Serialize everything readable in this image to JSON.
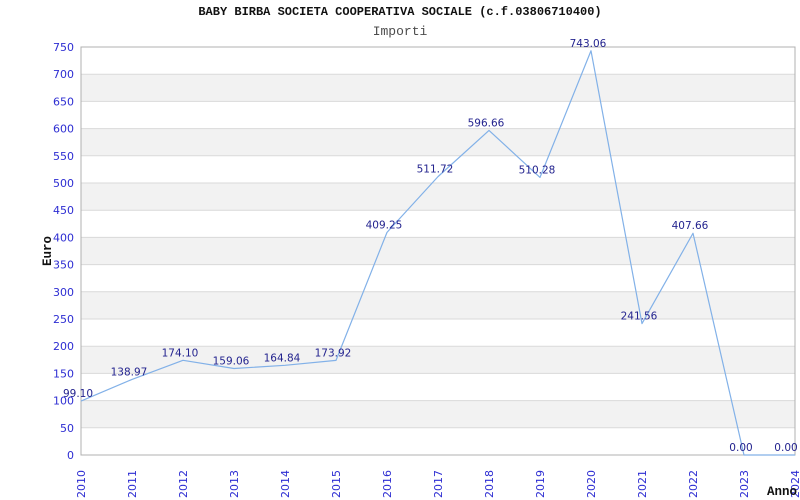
{
  "page": {
    "background": "#ffffff"
  },
  "header": {
    "title": "BABY BIRBA SOCIETA COOPERATIVA SOCIALE (c.f.03806710400)",
    "subtitle": "Importi"
  },
  "chart_data": {
    "type": "line",
    "title": "BABY BIRBA SOCIETA COOPERATIVA SOCIALE (c.f.03806710400)",
    "subtitle": "Importi",
    "xlabel": "Anno",
    "ylabel": "Euro",
    "categories": [
      "2010",
      "2011",
      "2012",
      "2013",
      "2014",
      "2015",
      "2016",
      "2017",
      "2018",
      "2019",
      "2020",
      "2021",
      "2022",
      "2023",
      "2024"
    ],
    "values": [
      99.1,
      138.97,
      174.1,
      159.06,
      164.84,
      173.92,
      409.25,
      511.72,
      596.66,
      510.28,
      743.06,
      241.56,
      407.66,
      0.0,
      0.0
    ],
    "point_labels": [
      "99.10",
      "138.97",
      "174.10",
      "159.06",
      "164.84",
      "173.92",
      "409.25",
      "511.72",
      "596.66",
      "510.28",
      "743.06",
      "241.56",
      "407.66",
      "0.00",
      "0.00"
    ],
    "ylim": [
      0,
      750
    ],
    "ytick_step": 50,
    "ytick_labels": [
      "0",
      "50",
      "100",
      "150",
      "200",
      "250",
      "300",
      "350",
      "400",
      "450",
      "500",
      "550",
      "600",
      "650",
      "700",
      "750"
    ],
    "grid": true,
    "banded_background": true,
    "legend_position": "none",
    "colors": {
      "line": "#82b1e8",
      "tick_label": "#2d2dd2",
      "point_label": "#24248f",
      "band": "#f2f2f2",
      "gridline": "#d9d9d9",
      "plot_border": "#b0b0b0",
      "title": "#111111",
      "subtitle": "#4d4d4d",
      "axis_title": "#111111"
    }
  }
}
